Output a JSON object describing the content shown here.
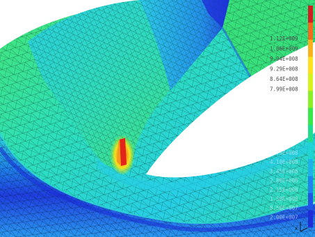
{
  "legend": {
    "colors": [
      "#d11d1d",
      "#f26b1d",
      "#f7b21d",
      "#ffe21d",
      "#d8f21d",
      "#8bef29",
      "#36e84a",
      "#1fdf8f",
      "#1fd4d4",
      "#1fb1ea",
      "#1e84ef",
      "#1f56e8",
      "#1f2fd8"
    ],
    "labels": [
      "1.12E+009",
      "1.06E+009",
      "9.94E+008",
      "9.29E+008",
      "8.64E+008",
      "7.99E+008"
    ],
    "faint_labels": [
      "4.75E+008",
      "4.10E+008",
      "3.45E+008",
      "2.80E+008",
      "2.15E+008",
      "1.50E+008",
      "8.50E+007",
      "2.00E+007"
    ]
  },
  "scene": {
    "colors": {
      "background": "#ffffff",
      "mesh_base": "#2fe0c6",
      "mesh_green": "#49e85a",
      "mesh_cyan": "#27cfe6",
      "mesh_blue": "#1f63e0",
      "mesh_deep": "#1a2ad6",
      "hotspot_red": "#e3241a",
      "hotspot_orange": "#f59a1d",
      "hotspot_yellow": "#f6e21d",
      "grid_line": "#0b3a2a"
    }
  },
  "axis_triad": {
    "label": "x"
  }
}
